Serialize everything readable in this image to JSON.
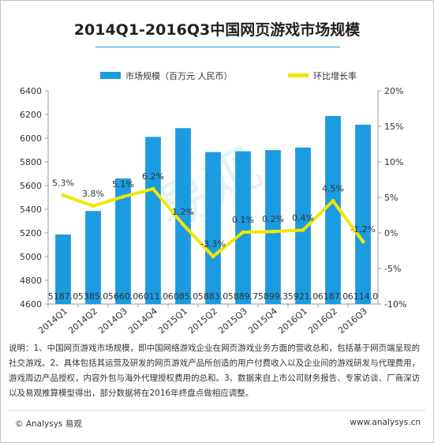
{
  "chart_data": {
    "type": "bar+line",
    "title": "2014Q1-2016Q3中国网页游戏市场规模",
    "categories": [
      "2014Q1",
      "2014Q2",
      "2014Q3",
      "2014Q4",
      "2015Q1",
      "2015Q2",
      "2015Q3",
      "2015Q4",
      "2016Q1",
      "2016Q2",
      "2016Q3"
    ],
    "series": [
      {
        "name": "市场规模（百万元 人民币）",
        "type": "bar",
        "axis": "left",
        "color": "#1b9be0",
        "values": [
          5187.0,
          5385.0,
          5660.0,
          6011.0,
          6085.0,
          5883.0,
          5889.7,
          5899.3,
          5921.0,
          6187.0,
          6114.0
        ],
        "value_labels": [
          "5187.0",
          "5385.0",
          "5660.0",
          "6011.0",
          "6085.0",
          "5883.0",
          "5889.7",
          "5899.3",
          "5921.0",
          "6187.0",
          "6114.0"
        ]
      },
      {
        "name": "环比增长率",
        "type": "line",
        "axis": "right",
        "color": "#f2e500",
        "values": [
          5.3,
          3.8,
          5.1,
          6.2,
          1.2,
          -3.3,
          0.1,
          0.2,
          0.4,
          4.5,
          -1.2
        ],
        "value_labels": [
          "5.3%",
          "3.8%",
          "5.1%",
          "6.2%",
          "1.2%",
          "-3.3%",
          "0.1%",
          "0.2%",
          "0.4%",
          "4.5%",
          "-1.2%"
        ]
      }
    ],
    "y_left": {
      "min": 4600,
      "max": 6400,
      "ticks": [
        4600,
        4800,
        5000,
        5200,
        5400,
        5600,
        5800,
        6000,
        6200,
        6400
      ]
    },
    "y_right": {
      "min": -10,
      "max": 20,
      "ticks": [
        -10,
        -5,
        0,
        5,
        10,
        15,
        20
      ],
      "tick_labels": [
        "-10%",
        "-5%",
        "0%",
        "5%",
        "10%",
        "15%",
        "20%"
      ]
    },
    "legend_position": "top",
    "grid": false
  },
  "watermark": "易观",
  "notes": "说明：1、中国网页游戏市场规模，即中国网络游戏企业在网页游戏业务方面的营收总和，包括基于网页端呈现的社交游戏。2、具体包括其运营及研发的网页游戏产品所创造的用户付费收入以及企业间的游戏研发与代理费用，游戏周边产品授权，内容外包与海外代理授权费用的总和。3、数据来自上市公司财务报告、专家访谈、厂商深访以及易观推算模型得出，部分数据将在2016年终盘点做相应调整。",
  "footer": {
    "left": "© Analysys 易观",
    "right": "www.analysys.cn"
  }
}
